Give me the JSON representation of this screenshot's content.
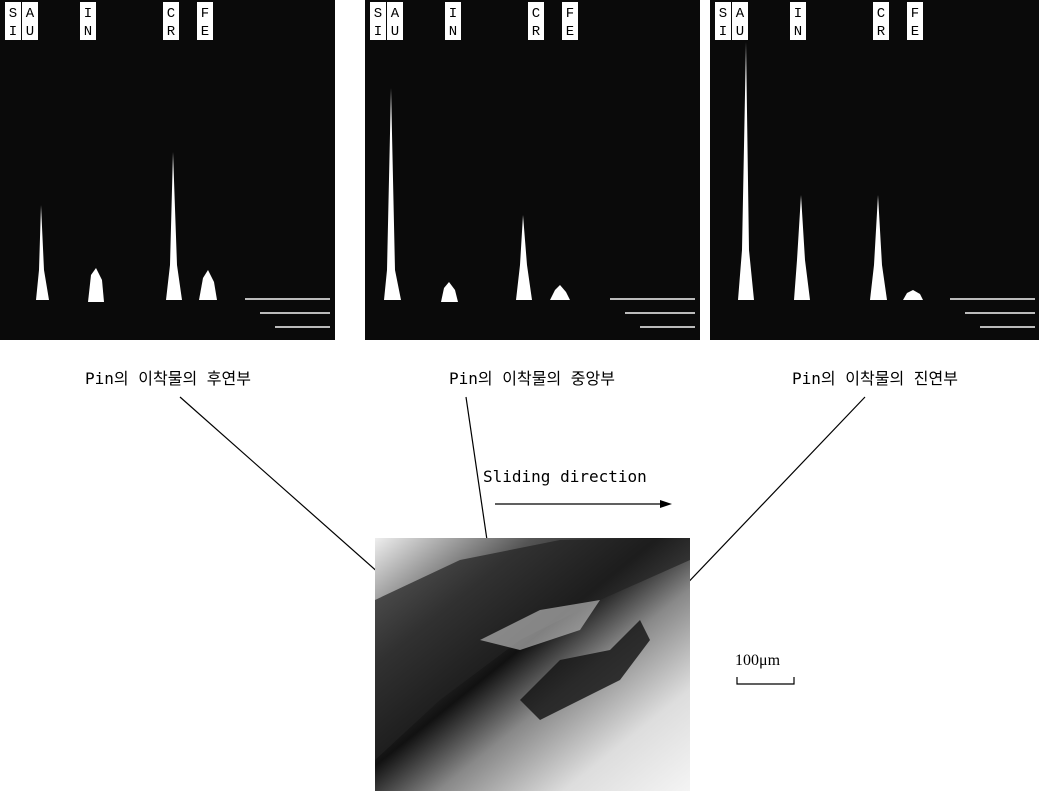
{
  "panels": [
    {
      "elements": [
        {
          "top": "S",
          "bottom": "I"
        },
        {
          "top": "A",
          "bottom": "U"
        },
        {
          "top": "I",
          "bottom": "N"
        },
        {
          "top": "C",
          "bottom": "R"
        },
        {
          "top": "F",
          "bottom": "E"
        }
      ],
      "caption": "Pin의 이착물의 후연부"
    },
    {
      "elements": [
        {
          "top": "S",
          "bottom": "I"
        },
        {
          "top": "A",
          "bottom": "U"
        },
        {
          "top": "I",
          "bottom": "N"
        },
        {
          "top": "C",
          "bottom": "R"
        },
        {
          "top": "F",
          "bottom": "E"
        }
      ],
      "caption": "Pin의 이착물의 중앙부"
    },
    {
      "elements": [
        {
          "top": "S",
          "bottom": "I"
        },
        {
          "top": "A",
          "bottom": "U"
        },
        {
          "top": "I",
          "bottom": "N"
        },
        {
          "top": "C",
          "bottom": "R"
        },
        {
          "top": "F",
          "bottom": "E"
        }
      ],
      "caption": "Pin의 이착물의 진연부"
    }
  ],
  "direction_label": "Sliding direction",
  "scale_label": "100μm"
}
